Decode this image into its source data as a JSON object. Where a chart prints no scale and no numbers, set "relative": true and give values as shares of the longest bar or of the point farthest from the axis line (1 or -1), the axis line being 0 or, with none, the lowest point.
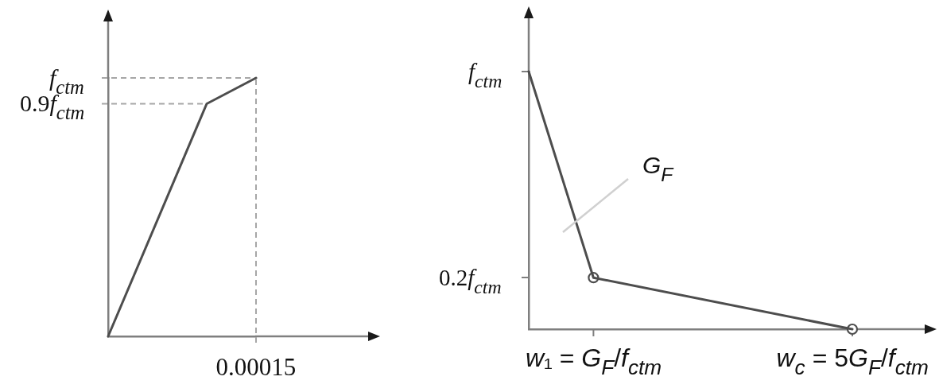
{
  "chart_data": [
    {
      "type": "line",
      "relative": true,
      "categories": [
        null,
        null,
        null,
        null
      ],
      "series": [
        {
          "color": "#4d4d4d",
          "values": [
            0,
            null,
            0.9,
            1
          ]
        }
      ],
      "ref_lines": [
        {
          "axis": "y",
          "value": 1,
          "label": "f$_{ctm}$",
          "color": "#a6a6a6",
          "line_style": "dashed"
        },
        {
          "axis": "y",
          "value": 0.9,
          "label": "0.9f$_{ctm}$",
          "color": "#a6a6a6",
          "line_style": "dashed"
        }
      ],
      "annotations": [
        "0.00015"
      ]
    },
    {
      "type": "line",
      "relative": true,
      "categories": [
        null,
        "w₁ = G$_{F}$/f$_{ctm}$",
        null,
        null,
        null,
        "w$_{c}$ = 5G$_{F}$/f$_{ctm}$"
      ],
      "series": [
        {
          "color": "#4d4d4d",
          "values": [
            1,
            0.2,
            null,
            null,
            null,
            0
          ]
        },
        {
          "type": "scatter",
          "color": "#4d4d4d",
          "values": [
            null,
            0.2,
            null,
            null,
            null,
            0
          ],
          "marker": "circle"
        }
      ],
      "annotations": [
        "f$_{ctm}$",
        "G$_{F}$",
        "0.2f$_{ctm}$"
      ]
    }
  ]
}
